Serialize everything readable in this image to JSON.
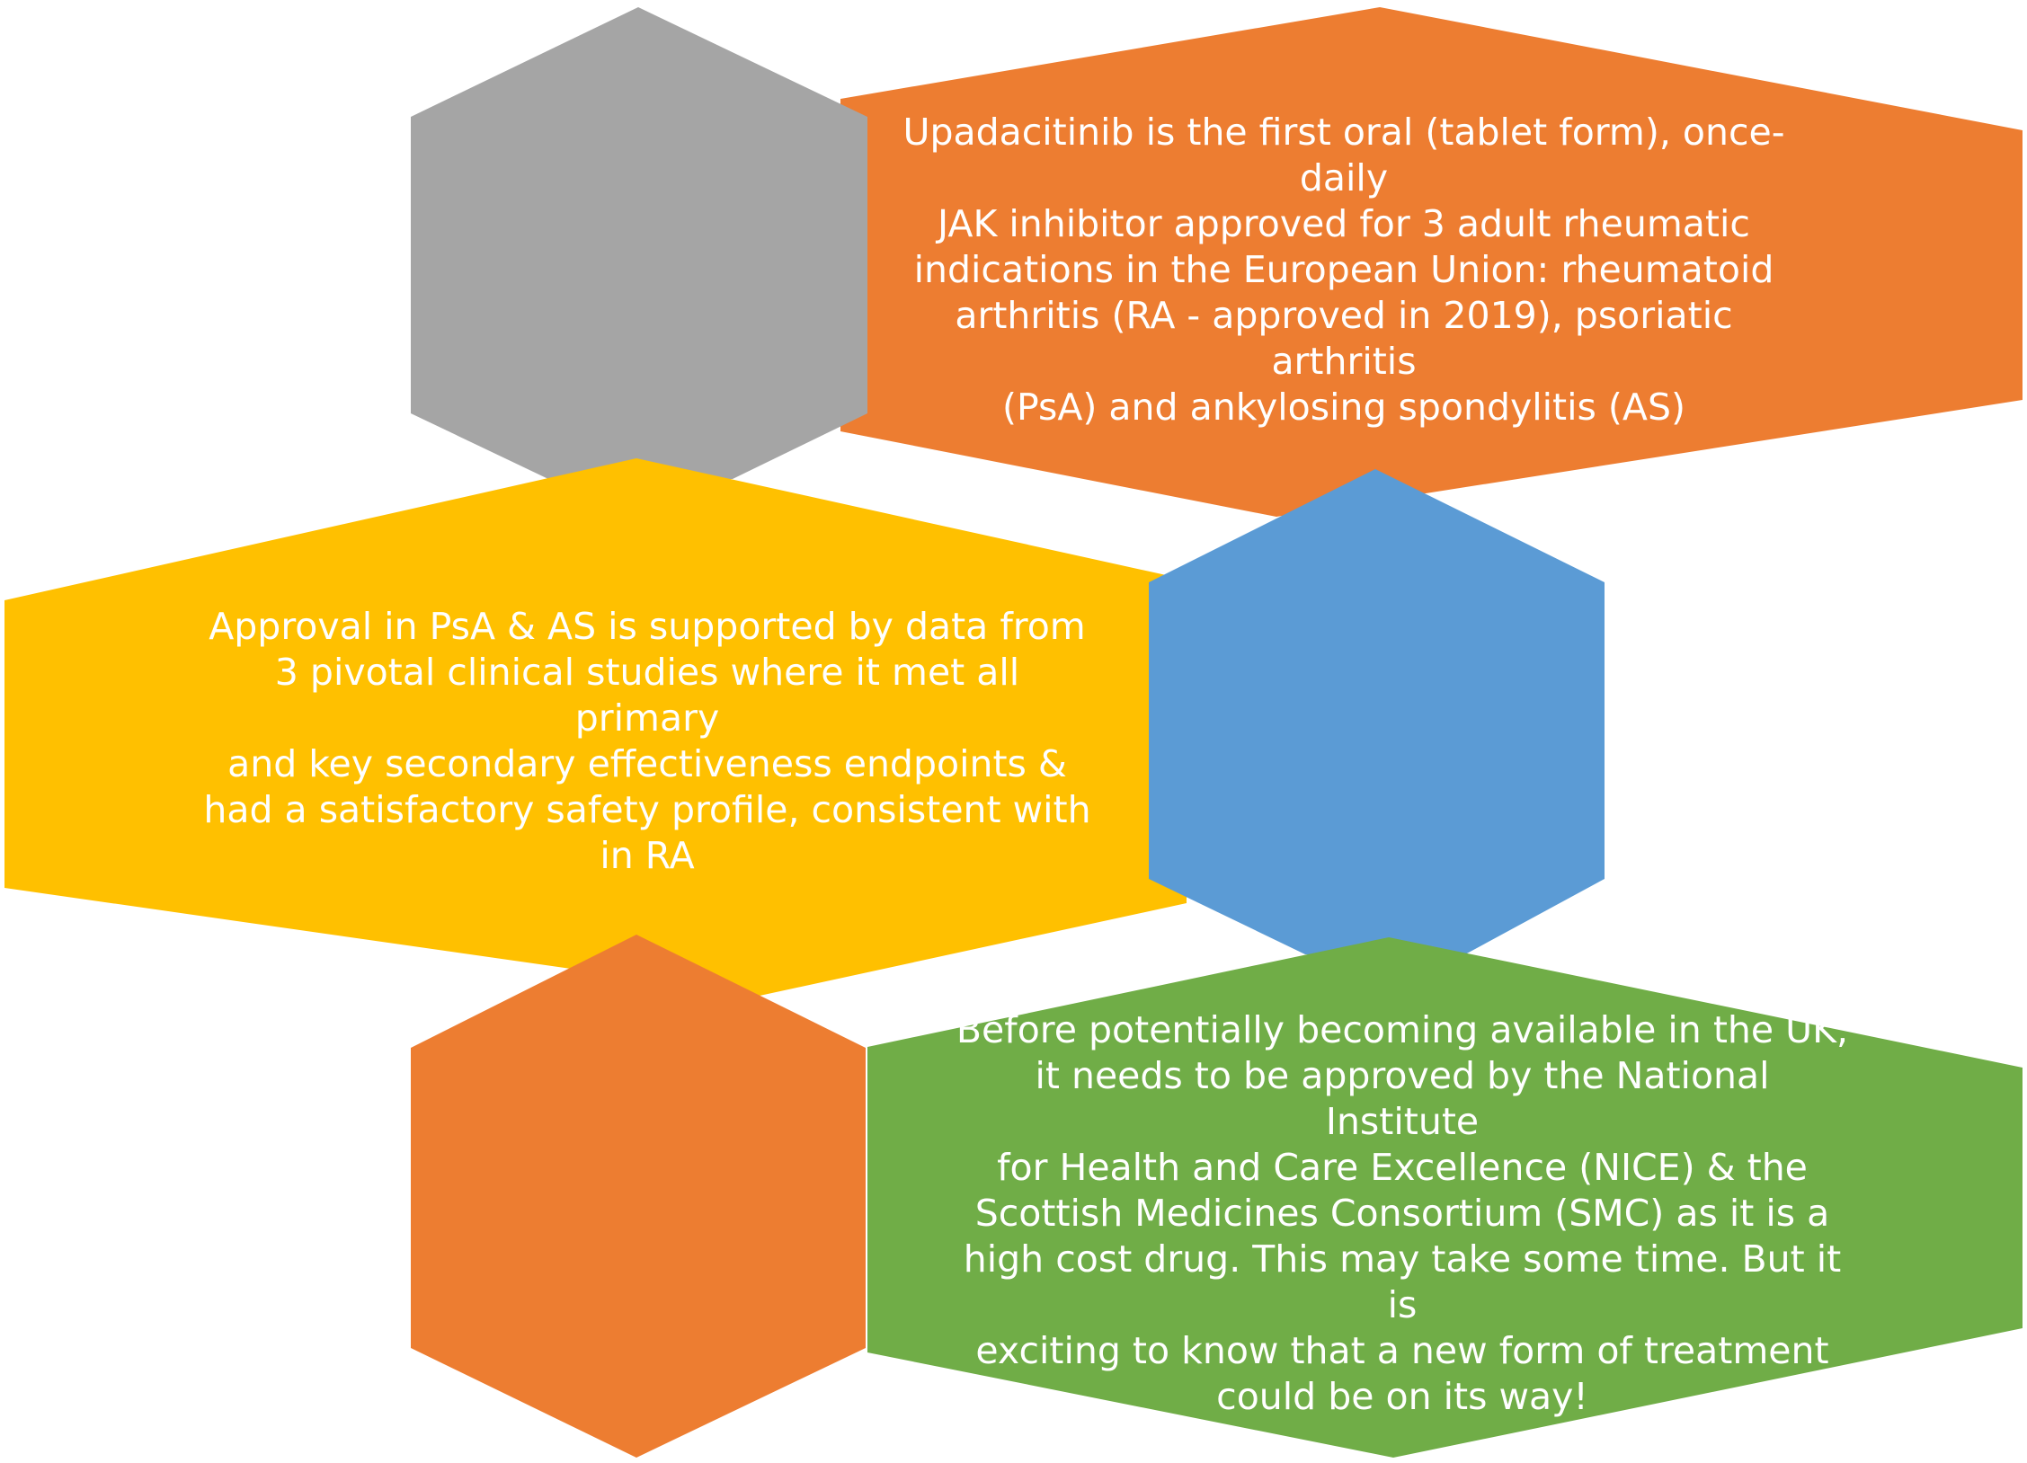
{
  "colors": {
    "gray": "#A5A5A5",
    "orange": "#ED7D31",
    "yellow": "#FFC000",
    "blue": "#5B9BD5",
    "green": "#70AD47",
    "text": "#FFFFFF"
  },
  "blocks": [
    {
      "text": "Upadacitinib is the first oral (tablet form), once-daily\nJAK inhibitor approved for 3 adult rheumatic\nindications in the European Union: rheumatoid\narthritis (RA - approved in 2019), psoriatic arthritis\n(PsA) and ankylosing spondylitis (AS)",
      "color": "orange",
      "accent_color": "gray"
    },
    {
      "text": "Approval in PsA & AS is supported by data from\n3 pivotal clinical studies where it met all primary\nand key secondary effectiveness endpoints &\nhad a satisfactory safety profile, consistent with\nin RA",
      "color": "yellow",
      "accent_color": "blue"
    },
    {
      "text": "Before potentially becoming available in the UK,\nit needs to be approved by the National Institute\nfor Health and Care Excellence (NICE) & the\nScottish Medicines Consortium (SMC) as it is a\nhigh cost drug. This may take some time. But it is\nexciting to know that a new form of treatment\ncould be on its way!",
      "color": "green",
      "accent_color": "orange"
    }
  ]
}
